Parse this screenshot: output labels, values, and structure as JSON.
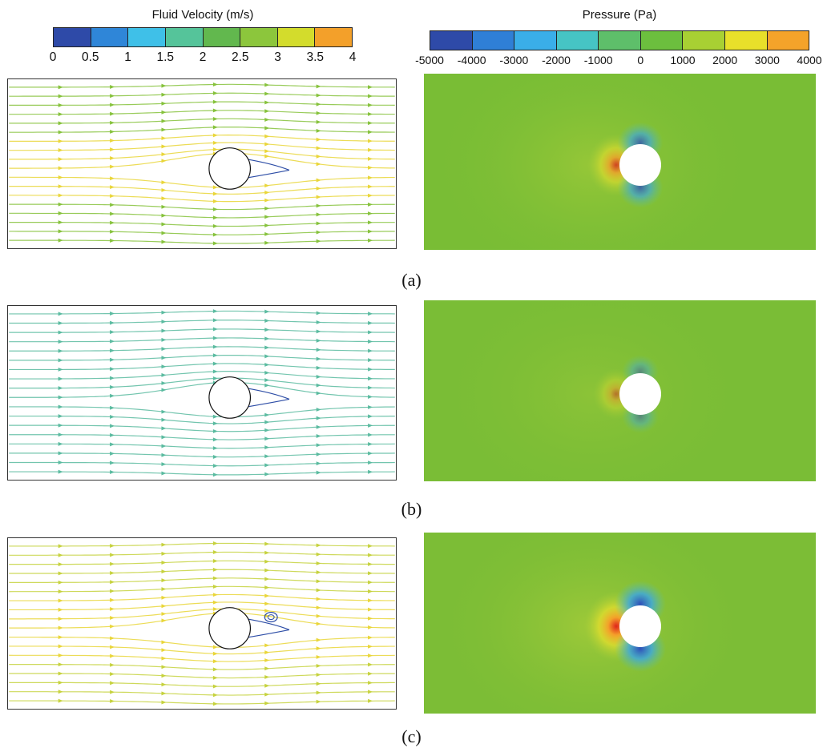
{
  "velocity_colorbar": {
    "title": "Fluid Velocity (m/s)",
    "ticks": [
      "0",
      "0.5",
      "1",
      "1.5",
      "2",
      "2.5",
      "3",
      "3.5",
      "4"
    ],
    "colors": [
      "#2e4aa8",
      "#2f86d8",
      "#3fc0e8",
      "#55c49a",
      "#62b84e",
      "#8cc63c",
      "#d3dc2c",
      "#f3a02a"
    ]
  },
  "pressure_colorbar": {
    "title": "Pressure (Pa)",
    "ticks": [
      "-5000",
      "-4000",
      "-3000",
      "-2000",
      "-1000",
      "0",
      "1000",
      "2000",
      "3000",
      "4000"
    ],
    "colors": [
      "#2e4aa8",
      "#2f7fd6",
      "#3aaee8",
      "#46c4c4",
      "#5ebf6a",
      "#6cbf3e",
      "#a8d033",
      "#e8e02a",
      "#f4a32a"
    ]
  },
  "rows": [
    {
      "caption": "(a)",
      "velocity_tint": "#86c23c",
      "pressure_bg": "#79bd35",
      "stagnation": "medium",
      "vortex": false
    },
    {
      "caption": "(b)",
      "velocity_tint": "#5bbba0",
      "pressure_bg": "#7abd36",
      "stagnation": "weak",
      "vortex": false
    },
    {
      "caption": "(c)",
      "velocity_tint": "#c6d23e",
      "pressure_bg": "#7cbd36",
      "stagnation": "strong",
      "vortex": true
    }
  ]
}
